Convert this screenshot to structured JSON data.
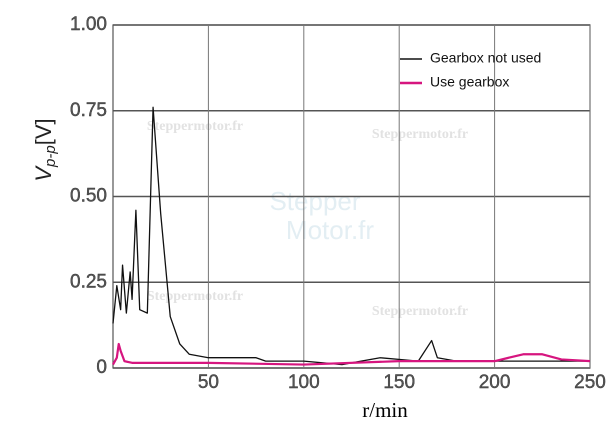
{
  "chart_data": {
    "type": "line",
    "ylabel": {
      "symbol": "V",
      "subscript": "p-p",
      "unit": "[V]"
    },
    "xlabel": "r/min",
    "xlim": [
      0,
      250
    ],
    "xticks": [
      50,
      100,
      150,
      200,
      250
    ],
    "ylim": [
      0,
      1
    ],
    "yticks": [
      0,
      0.25,
      {
        "value": 0.5,
        "label": "0.50"
      },
      0.75,
      {
        "value": 1,
        "label": "1.00"
      }
    ],
    "grid": true,
    "legend": "top-right",
    "watermarks": [
      "Steppermotor.fr",
      "Steppermotor.fr",
      "Steppermotor.fr",
      "Steppermotor.fr",
      "Stepper",
      "Motor.fr"
    ],
    "series": [
      {
        "name": "Gearbox not used",
        "color": "#111111",
        "x": [
          0,
          2,
          4,
          5,
          7,
          9,
          10,
          12,
          14,
          18,
          21,
          25,
          30,
          35,
          40,
          50,
          75,
          80,
          100,
          120,
          140,
          160,
          167,
          170,
          180,
          200,
          250
        ],
        "values": [
          0.13,
          0.24,
          0.17,
          0.3,
          0.16,
          0.28,
          0.2,
          0.46,
          0.17,
          0.16,
          0.76,
          0.45,
          0.15,
          0.07,
          0.04,
          0.03,
          0.03,
          0.02,
          0.02,
          0.01,
          0.03,
          0.02,
          0.08,
          0.03,
          0.02,
          0.02,
          0.02
        ]
      },
      {
        "name": "Use gearbox",
        "color": "#d6157f",
        "x": [
          0,
          2,
          3,
          4,
          6,
          10,
          50,
          100,
          150,
          200,
          215,
          225,
          235,
          250
        ],
        "values": [
          0.01,
          0.03,
          0.07,
          0.05,
          0.02,
          0.015,
          0.015,
          0.01,
          0.02,
          0.02,
          0.04,
          0.04,
          0.025,
          0.02
        ]
      }
    ]
  }
}
